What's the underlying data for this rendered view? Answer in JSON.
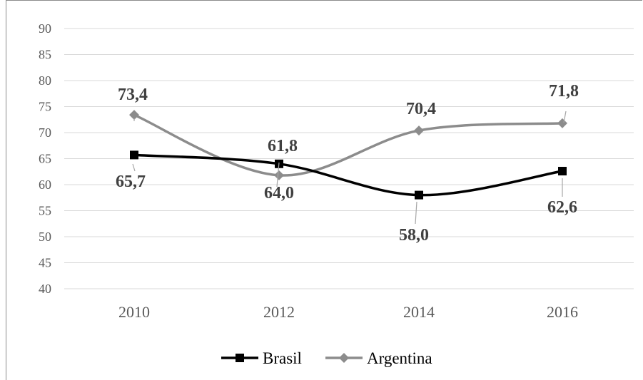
{
  "chart_data": {
    "type": "line",
    "title": "",
    "xlabel": "",
    "ylabel": "",
    "categories": [
      "2010",
      "2012",
      "2014",
      "2016"
    ],
    "ylim": [
      40,
      90
    ],
    "yticks": [
      40,
      45,
      50,
      55,
      60,
      65,
      70,
      75,
      80,
      85,
      90
    ],
    "grid": "horizontal",
    "legend_position": "bottom",
    "series": [
      {
        "name": "Brasil",
        "values": [
          65.7,
          64.0,
          58.0,
          62.6
        ],
        "labels": [
          "65,7",
          "64,0",
          "58,0",
          "62,6"
        ],
        "color": "#000000",
        "marker": "square"
      },
      {
        "name": "Argentina",
        "values": [
          73.4,
          61.8,
          70.4,
          71.8
        ],
        "labels": [
          "73,4",
          "61,8",
          "70,4",
          "71,8"
        ],
        "color": "#8c8c8c",
        "marker": "diamond"
      }
    ]
  }
}
